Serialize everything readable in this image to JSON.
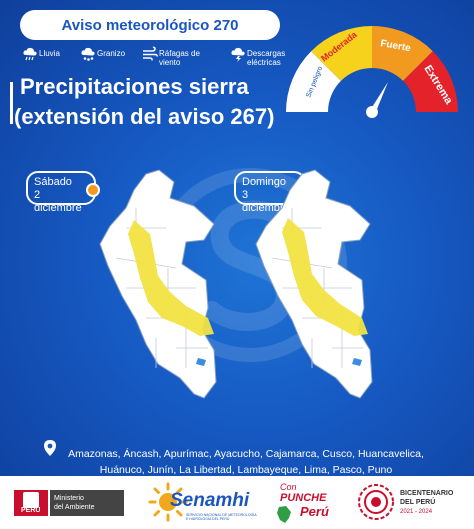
{
  "header": {
    "badge": "Aviso meteorológico 270",
    "title_line1": "Precipitaciones sierra",
    "title_line2": "(extensión del aviso 267)"
  },
  "legend": {
    "items": [
      {
        "label": "Lluvia",
        "icon": "rain-cloud-icon"
      },
      {
        "label": "Granizo",
        "icon": "hail-cloud-icon"
      },
      {
        "label_line1": "Ráfagas de",
        "label_line2": "viento",
        "icon": "wind-icon"
      },
      {
        "label_line1": "Descargas",
        "label_line2": "eléctricas",
        "icon": "lightning-cloud-icon"
      }
    ]
  },
  "gauge": {
    "levels": [
      "Sin peligro",
      "Moderada",
      "Fuerte",
      "Extrema"
    ],
    "colors": [
      "#ffffff",
      "#f7d21c",
      "#f29a1f",
      "#e3222a"
    ],
    "selected": "Extrema"
  },
  "maps": [
    {
      "date_line1": "Sábado 2",
      "date_line2": "diciembre"
    },
    {
      "date_line1": "Domingo 3",
      "date_line2": "diciembre"
    }
  ],
  "places": {
    "line1": "Amazonas, Áncash, Apurímac, Ayacucho, Cajamarca, Cusco, Huancavelica,",
    "line2": "Huánuco, Junín, La Libertad, Lambayeque, Lima, Pasco, Puno"
  },
  "footer": {
    "peru_label": "PERÚ",
    "ministry_line1": "Ministerio",
    "ministry_line2": "del Ambiente",
    "senamhi": "Senamhi",
    "senamhi_sub": "SERVICIO NACIONAL DE METEOROLOGÍA E HIDROLOGÍA DEL PERÚ",
    "con_label": "Con",
    "punche_label": "PUNCHE",
    "peru_script": "Perú",
    "bicentenario_line1": "BICENTENARIO",
    "bicentenario_line2": "DEL PERÚ",
    "bicentenario_years": "2021 - 2024"
  },
  "colors": {
    "background_blue": "#1659c2",
    "precip_yellow": "#f2e341",
    "land_white": "#ffffff",
    "lake_blue": "#3a8de0"
  }
}
